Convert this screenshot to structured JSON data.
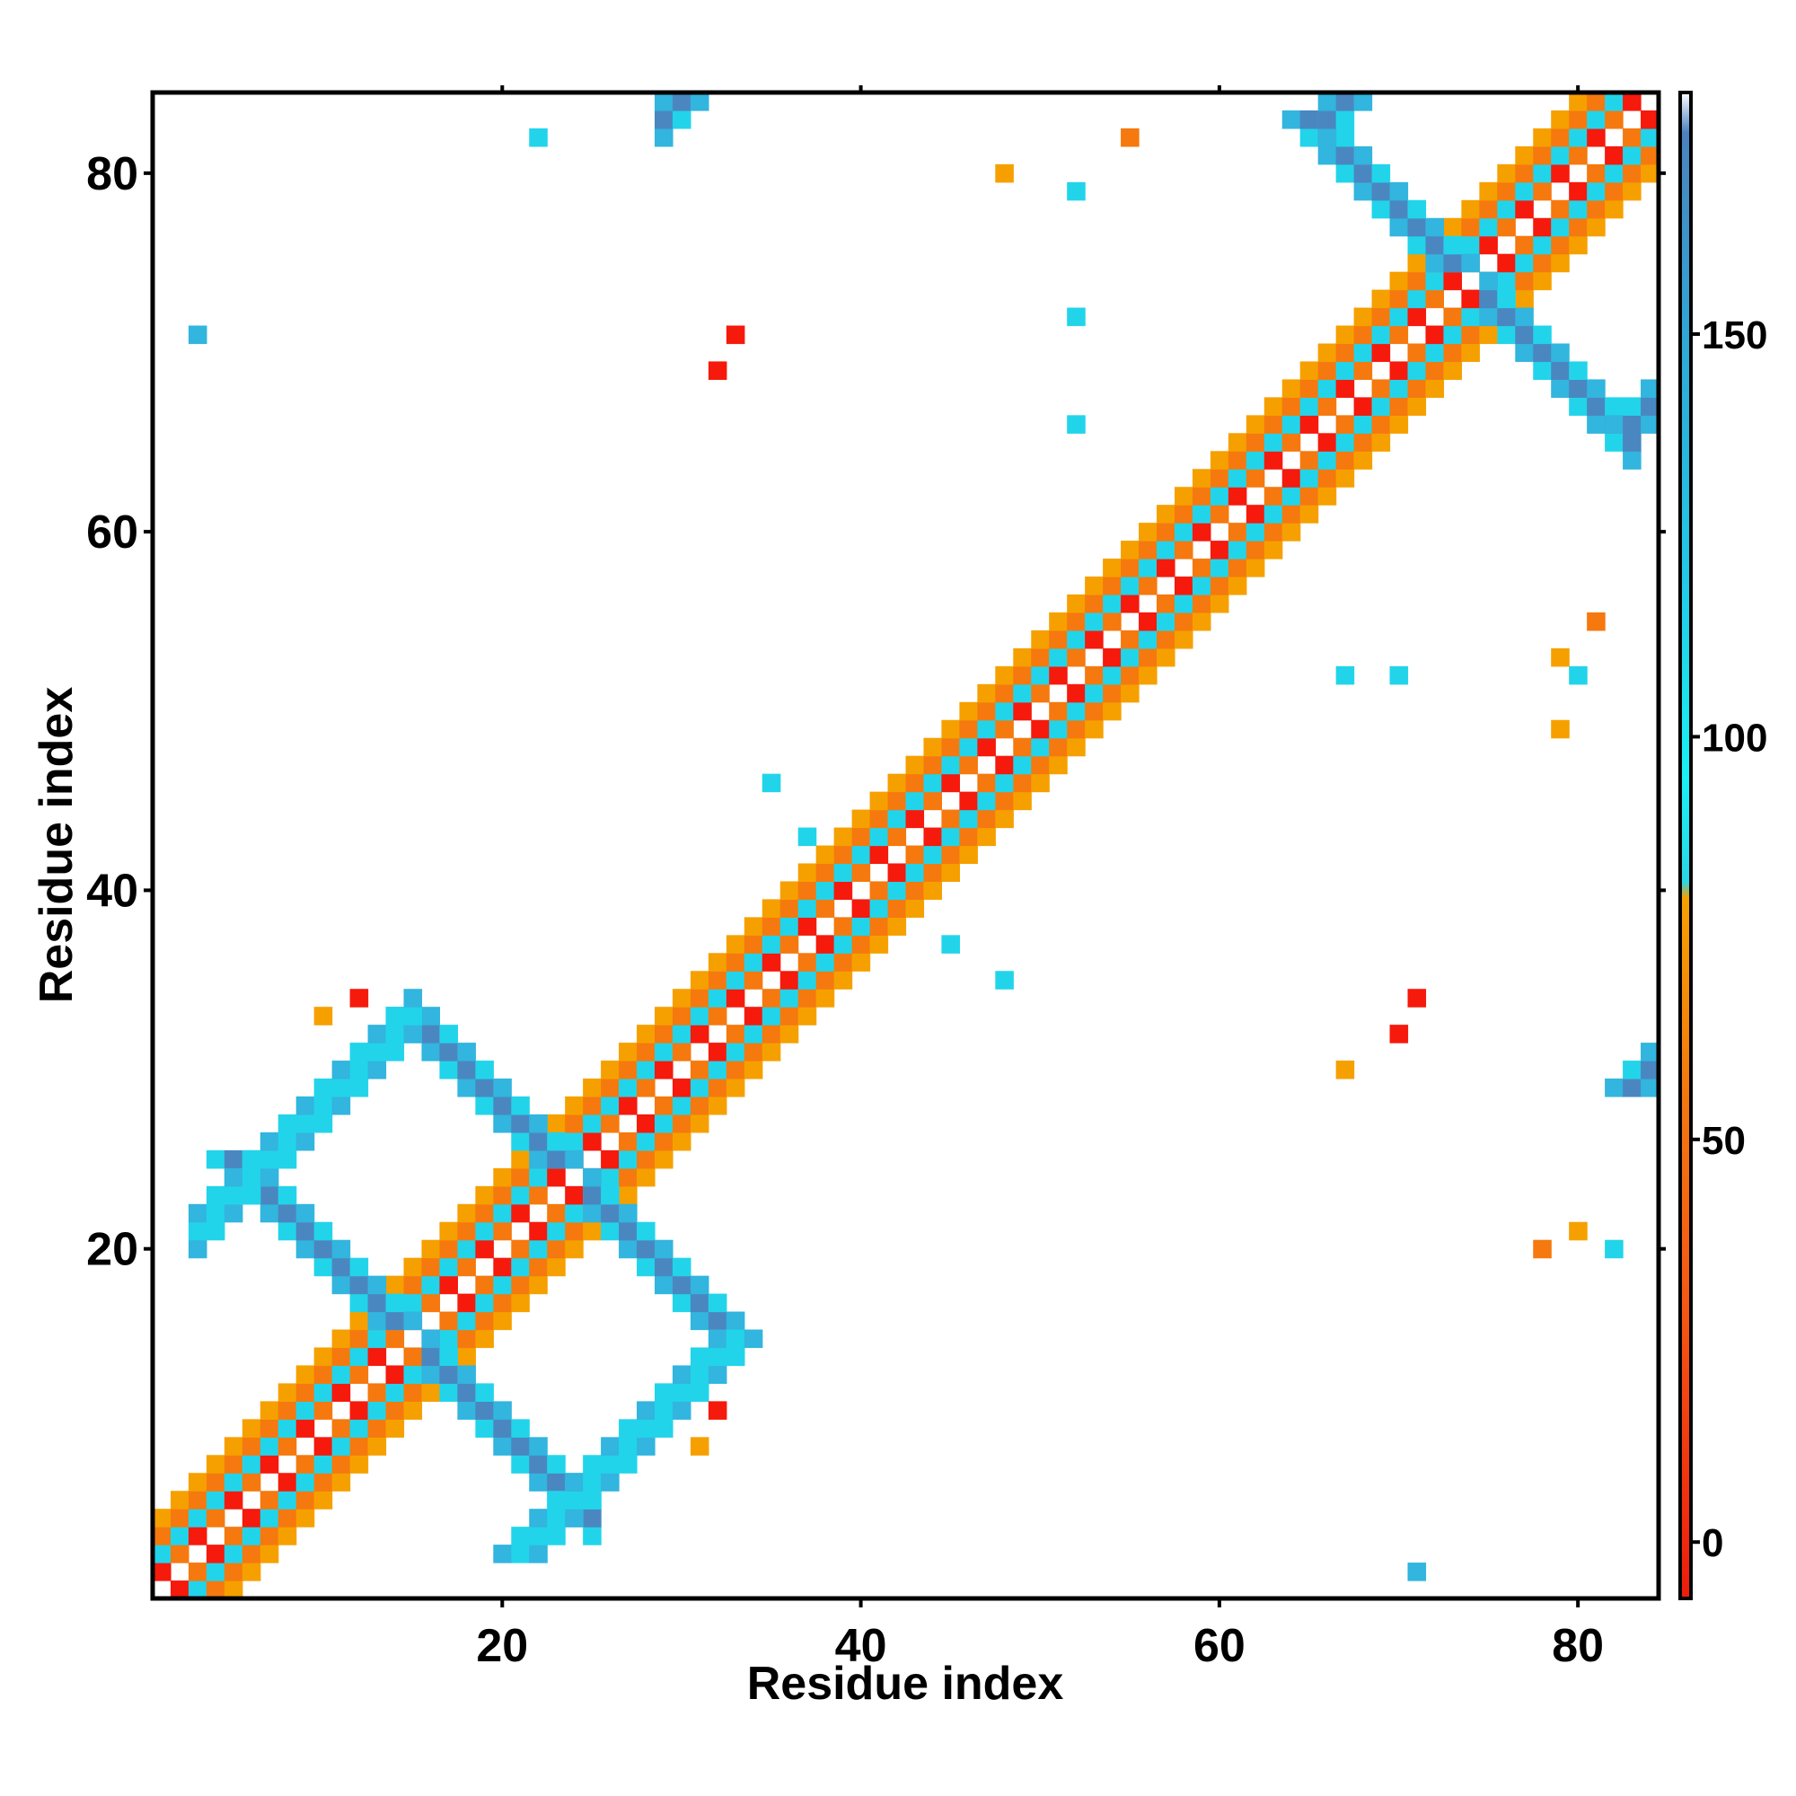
{
  "chart_data": {
    "type": "heatmap",
    "xlabel": "Residue index",
    "ylabel": "Residue index",
    "xlim": [
      1,
      84
    ],
    "ylim": [
      1,
      84
    ],
    "x_ticks": [
      20,
      40,
      60,
      80
    ],
    "y_ticks": [
      20,
      40,
      60,
      80
    ],
    "x_tick_labels": [
      "20",
      "40",
      "60",
      "80"
    ],
    "y_tick_labels": [
      "20",
      "40",
      "60",
      "80"
    ],
    "colorbar": {
      "range": [
        -7,
        180
      ],
      "ticks": [
        0,
        50,
        100,
        150
      ],
      "tick_labels": [
        "0",
        "50",
        "100",
        "150"
      ],
      "stops": [
        {
          "value": -7,
          "color": "#ee1c0c"
        },
        {
          "value": 30,
          "color": "#f45814"
        },
        {
          "value": 55,
          "color": "#f3770f"
        },
        {
          "value": 80,
          "color": "#f6a000"
        },
        {
          "value": 82,
          "color": "#2ad6e8"
        },
        {
          "value": 95,
          "color": "#19f1f5"
        },
        {
          "value": 120,
          "color": "#22c9e6"
        },
        {
          "value": 150,
          "color": "#30a6d4"
        },
        {
          "value": 175,
          "color": "#4b82bf"
        },
        {
          "value": 180,
          "color": "#ffffff"
        }
      ]
    },
    "palette": {
      "red": "#f51a0c",
      "orange_red": "#f45a14",
      "orange": "#f5790f",
      "amber": "#f6a000",
      "cyan": "#22d4ea",
      "bright_cyan": "#1cf2f5",
      "light_blue": "#32b5de",
      "steel_blue": "#4a87c0"
    },
    "diagonal": {
      "alternating_pattern": [
        "red",
        "orange",
        "cyan"
      ]
    },
    "off_diagonal_blocks": [
      {
        "name": "antiparallel 1",
        "anchor": [
          15,
          15
        ],
        "direction": "anti",
        "length": 10,
        "color": "steel_blue"
      },
      {
        "name": "antiparallel 2",
        "anchor": [
          24,
          24
        ],
        "direction": "anti",
        "length": 9,
        "color": "steel_blue"
      },
      {
        "name": "antiparallel 3",
        "anchor": [
          74,
          74
        ],
        "direction": "anti",
        "length": 9,
        "color": "steel_blue"
      },
      {
        "name": "parallel 1",
        "anchor": [
          2,
          20
        ],
        "direction": "parallel",
        "length": 13,
        "color": "cyan"
      },
      {
        "name": "parallel 2",
        "anchor": [
          28,
          82
        ],
        "direction": "parallel",
        "length": 10,
        "color": "steel_blue"
      },
      {
        "name": "parallel 3",
        "anchor": [
          65,
          82
        ],
        "direction": "parallel",
        "length": 10,
        "color": "steel_blue"
      }
    ]
  }
}
